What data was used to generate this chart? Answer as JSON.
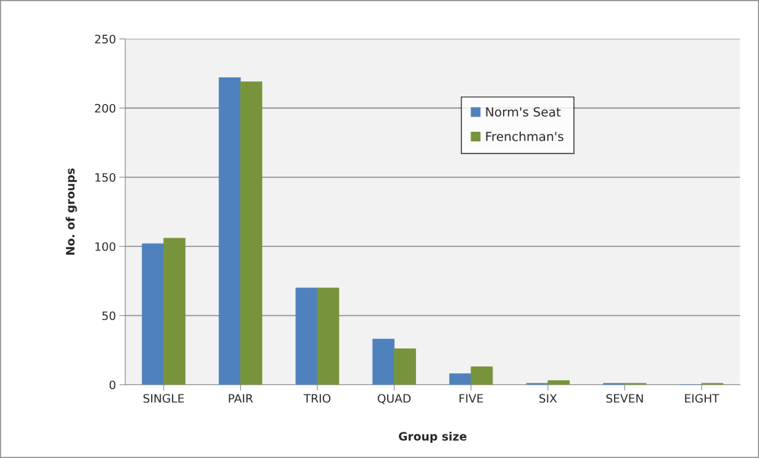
{
  "chart_data": {
    "type": "bar",
    "xlabel": "Group size",
    "ylabel": "No. of groups",
    "categories": [
      "SINGLE",
      "PAIR",
      "TRIO",
      "QUAD",
      "FIVE",
      "SIX",
      "SEVEN",
      "EIGHT"
    ],
    "series": [
      {
        "name": "Norm's Seat",
        "color": "#4f81bd",
        "values": [
          102,
          222,
          70,
          33,
          8,
          1,
          1,
          0
        ]
      },
      {
        "name": "Frenchman's",
        "color": "#77933c",
        "values": [
          106,
          219,
          70,
          26,
          13,
          3,
          1,
          1
        ]
      }
    ],
    "ylim": [
      0,
      250
    ],
    "yticks": [
      0,
      50,
      100,
      150,
      200,
      250
    ],
    "grid": "y",
    "legend": "top right"
  }
}
